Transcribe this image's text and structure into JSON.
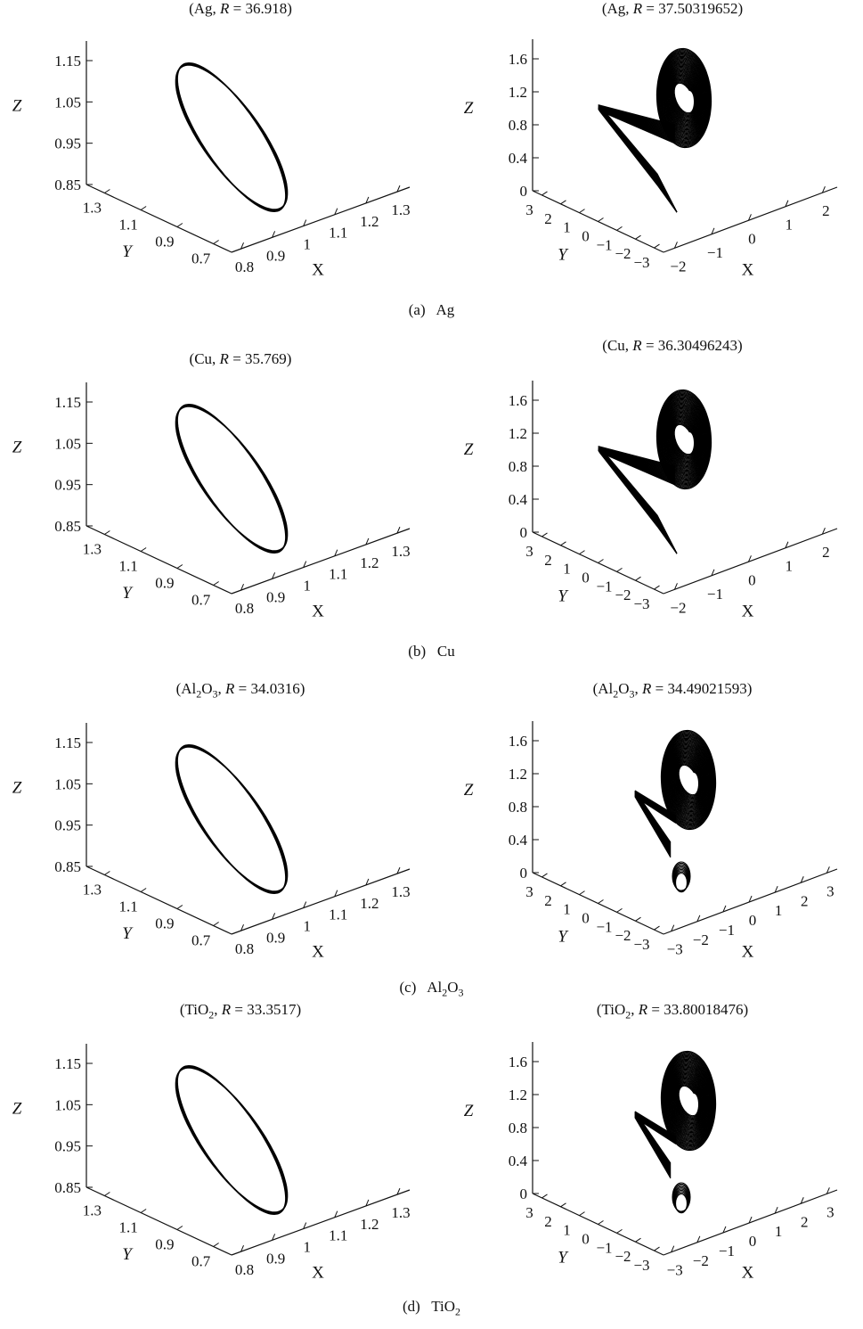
{
  "figure": {
    "groups": [
      {
        "caption_label": "(a)",
        "caption_name": "Ag",
        "caption_sub": ""
      },
      {
        "caption_label": "(b)",
        "caption_name": "Cu",
        "caption_sub": ""
      },
      {
        "caption_label": "(c)",
        "caption_name": "Al2O3",
        "caption_sub": "Al",
        "caption_sub_parts": [
          "Al",
          "2",
          "O",
          "3"
        ]
      },
      {
        "caption_label": "(d)",
        "caption_name": "TiO2",
        "caption_sub_parts": [
          "TiO",
          "2"
        ]
      }
    ]
  },
  "chart_data": [
    {
      "type": "line3d",
      "material": "Ag",
      "R": "36.918",
      "title_pre": "(Ag, ",
      "title_post": " = 36.918)",
      "xlabel": "X",
      "ylabel": "Y",
      "zlabel": "Z",
      "xticks": [
        "0.8",
        "0.9",
        "1",
        "1.1",
        "1.2",
        "1.3"
      ],
      "yticks": [
        "1.3",
        "1.1",
        "0.9",
        "0.7"
      ],
      "zticks": [
        "1.15",
        "1.05",
        "0.95",
        "0.85"
      ],
      "shape": "limit cycle (periodic orbit)"
    },
    {
      "type": "line3d",
      "material": "Ag",
      "R": "37.50319652",
      "title_pre": "(Ag, ",
      "title_post": " = 37.50319652)",
      "xlabel": "X",
      "ylabel": "Y",
      "zlabel": "Z",
      "xticks": [
        "−2",
        "−1",
        "0",
        "1",
        "2"
      ],
      "yticks": [
        "3",
        "2",
        "1",
        "0",
        "−1",
        "−2",
        "−3"
      ],
      "zticks": [
        "1.6",
        "1.2",
        "0.8",
        "0.4",
        "0"
      ],
      "shape": "chaotic attractor"
    },
    {
      "type": "line3d",
      "material": "Cu",
      "R": "35.769",
      "title_pre": "(Cu, ",
      "title_post": " = 35.769)",
      "xlabel": "X",
      "ylabel": "Y",
      "zlabel": "Z",
      "xticks": [
        "0.8",
        "0.9",
        "1",
        "1.1",
        "1.2",
        "1.3"
      ],
      "yticks": [
        "1.3",
        "1.1",
        "0.9",
        "0.7"
      ],
      "zticks": [
        "1.15",
        "1.05",
        "0.95",
        "0.85"
      ],
      "shape": "limit cycle (periodic orbit)"
    },
    {
      "type": "line3d",
      "material": "Cu",
      "R": "36.30496243",
      "title_pre": "(Cu, ",
      "title_post": " = 36.30496243)",
      "xlabel": "X",
      "ylabel": "Y",
      "zlabel": "Z",
      "xticks": [
        "−2",
        "−1",
        "0",
        "1",
        "2"
      ],
      "yticks": [
        "3",
        "2",
        "1",
        "0",
        "−1",
        "−2",
        "−3"
      ],
      "zticks": [
        "1.6",
        "1.2",
        "0.8",
        "0.4",
        "0"
      ],
      "shape": "chaotic attractor"
    },
    {
      "type": "line3d",
      "material": "Al2O3",
      "R": "34.0316",
      "title_pre": "(Al",
      "title_post": " = 34.0316)",
      "xlabel": "X",
      "ylabel": "Y",
      "zlabel": "Z",
      "xticks": [
        "0.8",
        "0.9",
        "1",
        "1.1",
        "1.2",
        "1.3"
      ],
      "yticks": [
        "1.3",
        "1.1",
        "0.9",
        "0.7"
      ],
      "zticks": [
        "1.15",
        "1.05",
        "0.95",
        "0.85"
      ],
      "shape": "limit cycle (periodic orbit)"
    },
    {
      "type": "line3d",
      "material": "Al2O3",
      "R": "34.49021593",
      "title_pre": "(Al",
      "title_post": " = 34.49021593)",
      "xlabel": "X",
      "ylabel": "Y",
      "zlabel": "Z",
      "xticks": [
        "−3",
        "−2",
        "−1",
        "0",
        "1",
        "2",
        "3"
      ],
      "yticks": [
        "3",
        "2",
        "1",
        "0",
        "−1",
        "−2",
        "−3"
      ],
      "zticks": [
        "1.6",
        "1.2",
        "0.8",
        "0.4",
        "0"
      ],
      "shape": "chaotic attractor"
    },
    {
      "type": "line3d",
      "material": "TiO2",
      "R": "33.3517",
      "title_pre": "(TiO",
      "title_post": " = 33.3517)",
      "xlabel": "X",
      "ylabel": "Y",
      "zlabel": "Z",
      "xticks": [
        "0.8",
        "0.9",
        "1",
        "1.1",
        "1.2",
        "1.3"
      ],
      "yticks": [
        "1.3",
        "1.1",
        "0.9",
        "0.7"
      ],
      "zticks": [
        "1.15",
        "1.05",
        "0.95",
        "0.85"
      ],
      "shape": "limit cycle (periodic orbit)"
    },
    {
      "type": "line3d",
      "material": "TiO2",
      "R": "33.80018476",
      "title_pre": "(TiO",
      "title_post": " = 33.80018476)",
      "xlabel": "X",
      "ylabel": "Y",
      "zlabel": "Z",
      "xticks": [
        "−3",
        "−2",
        "−1",
        "0",
        "1",
        "2",
        "3"
      ],
      "yticks": [
        "3",
        "2",
        "1",
        "0",
        "−1",
        "−2",
        "−3"
      ],
      "zticks": [
        "1.6",
        "1.2",
        "0.8",
        "0.4",
        "0"
      ],
      "shape": "chaotic attractor"
    }
  ]
}
